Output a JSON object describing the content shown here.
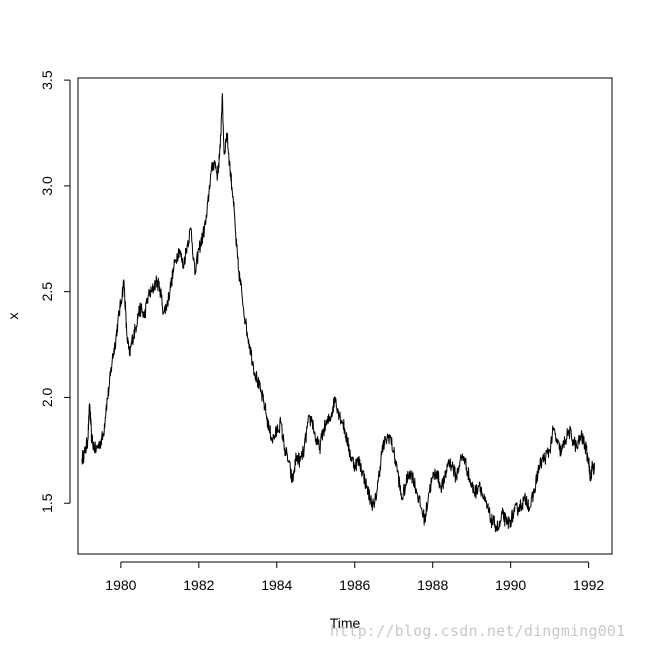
{
  "chart_data": {
    "type": "line",
    "title": "",
    "xlabel": "Time",
    "ylabel": "x",
    "xlim": [
      1978.9,
      1992.6
    ],
    "ylim": [
      1.26,
      3.51
    ],
    "x_ticks": [
      1980,
      1982,
      1984,
      1986,
      1988,
      1990,
      1992
    ],
    "x_tick_labels": [
      "1980",
      "1982",
      "1984",
      "1986",
      "1988",
      "1990",
      "1992"
    ],
    "y_ticks": [
      1.5,
      2.0,
      2.5,
      3.0,
      3.5
    ],
    "y_tick_labels": [
      "1.5",
      "2.0",
      "2.5",
      "3.0",
      "3.5"
    ],
    "grid": false,
    "legend": "none",
    "line_color": "#000000",
    "series": [
      {
        "x": [
          1979.0,
          1979.08,
          1979.15,
          1979.2,
          1979.25,
          1979.35,
          1979.45,
          1979.55,
          1979.62,
          1979.7,
          1979.78,
          1979.85,
          1979.92,
          1980.0,
          1980.08,
          1980.15,
          1980.22,
          1980.3,
          1980.38,
          1980.45,
          1980.52,
          1980.6,
          1980.7,
          1980.8,
          1980.9,
          1981.0,
          1981.1,
          1981.2,
          1981.3,
          1981.4,
          1981.5,
          1981.6,
          1981.7,
          1981.8,
          1981.9,
          1982.0,
          1982.1,
          1982.2,
          1982.3,
          1982.4,
          1982.48,
          1982.55,
          1982.6,
          1982.65,
          1982.72,
          1982.8,
          1982.88,
          1982.95,
          1983.02,
          1983.1,
          1983.2,
          1983.3,
          1983.4,
          1983.5,
          1983.6,
          1983.7,
          1983.8,
          1983.9,
          1984.0,
          1984.1,
          1984.2,
          1984.3,
          1984.4,
          1984.5,
          1984.6,
          1984.7,
          1984.8,
          1984.9,
          1985.0,
          1985.1,
          1985.2,
          1985.3,
          1985.4,
          1985.5,
          1985.6,
          1985.7,
          1985.8,
          1985.9,
          1986.0,
          1986.1,
          1986.2,
          1986.3,
          1986.4,
          1986.5,
          1986.6,
          1986.7,
          1986.8,
          1986.9,
          1987.0,
          1987.1,
          1987.2,
          1987.3,
          1987.4,
          1987.5,
          1987.6,
          1987.7,
          1987.8,
          1987.9,
          1988.0,
          1988.1,
          1988.2,
          1988.3,
          1988.4,
          1988.5,
          1988.6,
          1988.7,
          1988.8,
          1988.9,
          1989.0,
          1989.1,
          1989.2,
          1989.3,
          1989.4,
          1989.5,
          1989.6,
          1989.7,
          1989.8,
          1989.9,
          1990.0,
          1990.1,
          1990.2,
          1990.3,
          1990.4,
          1990.5,
          1990.6,
          1990.7,
          1990.8,
          1990.9,
          1991.0,
          1991.1,
          1991.2,
          1991.3,
          1991.4,
          1991.5,
          1991.6,
          1991.7,
          1991.8,
          1991.9,
          1992.0,
          1992.05,
          1992.1,
          1992.15
        ],
        "y": [
          1.71,
          1.74,
          1.8,
          1.97,
          1.8,
          1.75,
          1.78,
          1.82,
          1.95,
          2.05,
          2.18,
          2.25,
          2.35,
          2.45,
          2.55,
          2.3,
          2.2,
          2.28,
          2.33,
          2.4,
          2.42,
          2.38,
          2.48,
          2.5,
          2.55,
          2.52,
          2.4,
          2.45,
          2.55,
          2.65,
          2.7,
          2.62,
          2.72,
          2.8,
          2.58,
          2.7,
          2.76,
          2.85,
          3.05,
          3.12,
          3.05,
          3.18,
          3.43,
          3.15,
          3.25,
          3.08,
          2.95,
          2.75,
          2.6,
          2.5,
          2.35,
          2.25,
          2.15,
          2.08,
          2.02,
          1.95,
          1.85,
          1.8,
          1.84,
          1.88,
          1.76,
          1.7,
          1.6,
          1.72,
          1.7,
          1.75,
          1.88,
          1.9,
          1.8,
          1.76,
          1.85,
          1.88,
          1.92,
          2.0,
          1.92,
          1.88,
          1.8,
          1.72,
          1.68,
          1.7,
          1.65,
          1.58,
          1.52,
          1.48,
          1.6,
          1.75,
          1.8,
          1.82,
          1.74,
          1.65,
          1.52,
          1.58,
          1.65,
          1.62,
          1.55,
          1.48,
          1.42,
          1.55,
          1.62,
          1.65,
          1.58,
          1.6,
          1.7,
          1.68,
          1.62,
          1.7,
          1.72,
          1.65,
          1.58,
          1.55,
          1.6,
          1.52,
          1.48,
          1.42,
          1.4,
          1.38,
          1.45,
          1.4,
          1.42,
          1.46,
          1.48,
          1.5,
          1.52,
          1.48,
          1.55,
          1.65,
          1.7,
          1.72,
          1.75,
          1.85,
          1.78,
          1.74,
          1.8,
          1.84,
          1.8,
          1.76,
          1.82,
          1.78,
          1.7,
          1.62,
          1.68,
          1.66
        ]
      }
    ]
  }
}
